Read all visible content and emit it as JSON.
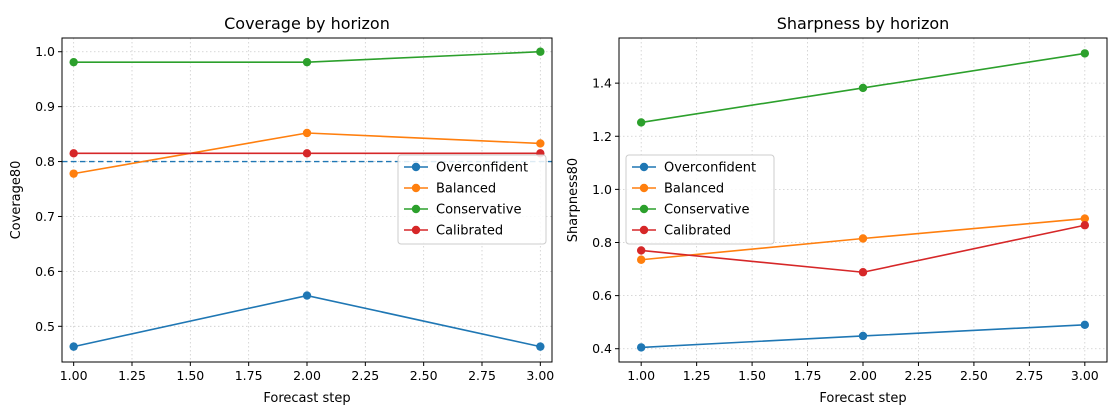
{
  "chart_data": [
    {
      "type": "line",
      "title": "Coverage by horizon",
      "xlabel": "Forecast step",
      "ylabel": "Coverage80",
      "x": [
        1.0,
        2.0,
        3.0
      ],
      "xlim": [
        0.95,
        3.05
      ],
      "ylim": [
        0.435,
        1.025
      ],
      "xticks": [
        "1.00",
        "1.25",
        "1.50",
        "1.75",
        "2.00",
        "2.25",
        "2.50",
        "2.75",
        "3.00"
      ],
      "yticks": [
        "0.5",
        "0.6",
        "0.7",
        "0.8",
        "0.9",
        "1.0"
      ],
      "grid": true,
      "legend_position": "center-right",
      "reference_line": {
        "y": 0.8,
        "style": "dashed",
        "color": "#1f77b4"
      },
      "series": [
        {
          "name": "Overconfident",
          "color": "#1f77b4",
          "values": [
            0.463,
            0.556,
            0.463
          ]
        },
        {
          "name": "Balanced",
          "color": "#ff7f0e",
          "values": [
            0.778,
            0.852,
            0.833
          ]
        },
        {
          "name": "Conservative",
          "color": "#2ca02c",
          "values": [
            0.981,
            0.981,
            1.0
          ]
        },
        {
          "name": "Calibrated",
          "color": "#d62728",
          "values": [
            0.815,
            0.815,
            0.815
          ]
        }
      ]
    },
    {
      "type": "line",
      "title": "Sharpness by horizon",
      "xlabel": "Forecast step",
      "ylabel": "Sharpness80",
      "x": [
        1.0,
        2.0,
        3.0
      ],
      "xlim": [
        0.9,
        3.1
      ],
      "ylim": [
        0.35,
        1.57
      ],
      "xticks": [
        "1.00",
        "1.25",
        "1.50",
        "1.75",
        "2.00",
        "2.25",
        "2.50",
        "2.75",
        "3.00"
      ],
      "yticks": [
        "0.4",
        "0.6",
        "0.8",
        "1.0",
        "1.2",
        "1.4"
      ],
      "grid": true,
      "legend_position": "center-left",
      "series": [
        {
          "name": "Overconfident",
          "color": "#1f77b4",
          "values": [
            0.405,
            0.448,
            0.49
          ]
        },
        {
          "name": "Balanced",
          "color": "#ff7f0e",
          "values": [
            0.735,
            0.815,
            0.89
          ]
        },
        {
          "name": "Conservative",
          "color": "#2ca02c",
          "values": [
            1.252,
            1.382,
            1.512
          ]
        },
        {
          "name": "Calibrated",
          "color": "#d62728",
          "values": [
            0.77,
            0.688,
            0.865
          ]
        }
      ]
    }
  ]
}
